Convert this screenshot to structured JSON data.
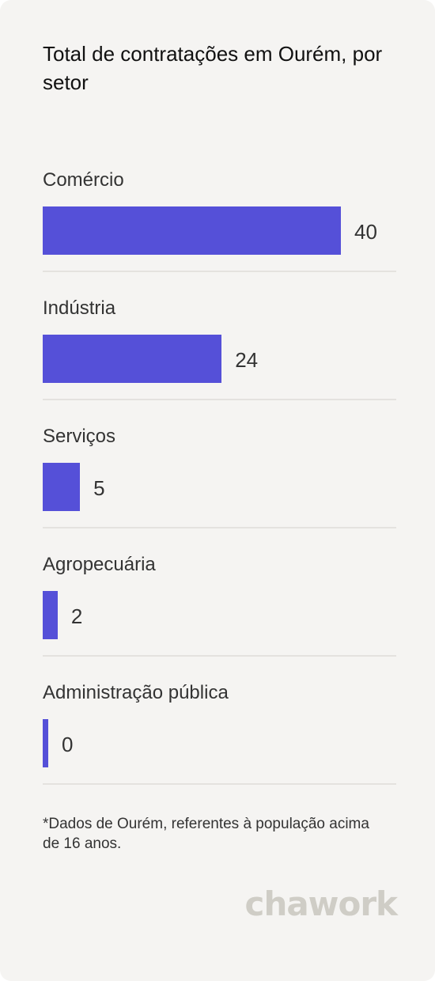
{
  "title": "Total de contratações em Ourém, por setor",
  "footnote": "*Dados de Ourém, referentes à população acima de 16 anos.",
  "logo_text": "chawork",
  "colors": {
    "bar": "#5550d8",
    "background": "#f5f4f2",
    "divider": "#e4e2df",
    "logo": "#cfcdc6"
  },
  "chart_data": {
    "type": "bar",
    "orientation": "horizontal",
    "title": "Total de contratações em Ourém, por setor",
    "categories": [
      "Comércio",
      "Indústria",
      "Serviços",
      "Agropecuária",
      "Administração pública"
    ],
    "values": [
      40,
      24,
      5,
      2,
      0
    ],
    "grid": false,
    "legend": "none"
  }
}
